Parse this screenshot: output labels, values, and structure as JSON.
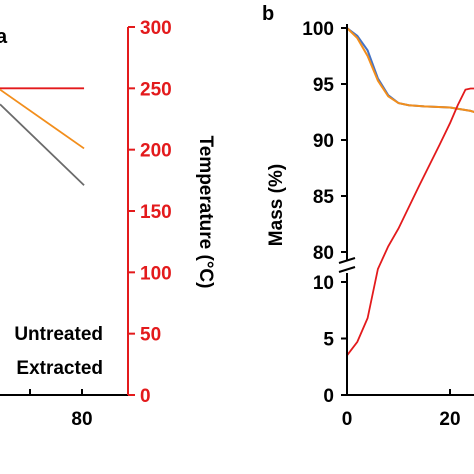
{
  "panel_a": {
    "letter": "a",
    "legend": [
      "Untreated",
      "Extracted"
    ]
  },
  "panel_b": {
    "letter": "b"
  },
  "colors": {
    "untreated": "#6b6b6b",
    "extracted": "#f28e1c",
    "temperature": "#e31a1c",
    "blue_trace": "#4472c4",
    "axis": "#000000"
  },
  "chart_data": [
    {
      "type": "line",
      "panel": "a",
      "title": "",
      "xlabel": "",
      "ylabel_right": "Temperature (°C)",
      "xlim": [
        0,
        85
      ],
      "ylim_right": [
        0,
        300
      ],
      "x_ticks": [
        80
      ],
      "y_right_ticks": [
        0,
        50,
        100,
        150,
        200,
        250,
        300
      ],
      "temperature_series": {
        "name": "",
        "x": [
          0,
          82
        ],
        "y": [
          250,
          250
        ]
      },
      "series": [
        {
          "name": "Untreated",
          "x": [
            0,
            82
          ],
          "y": [
            0.79,
            0.57
          ]
        },
        {
          "name": "Extracted",
          "x": [
            0,
            82
          ],
          "y": [
            0.83,
            0.67
          ]
        }
      ]
    },
    {
      "type": "line",
      "panel": "b",
      "title": "",
      "xlabel": "",
      "ylabel": "Mass (%)",
      "xlim": [
        0,
        30
      ],
      "x_ticks": [
        0,
        20
      ],
      "y_ticks_upper": [
        80,
        85,
        90,
        95,
        100
      ],
      "y_ticks_lower": [
        0,
        5,
        10
      ],
      "y_break": [
        10,
        79
      ],
      "series": [
        {
          "name": "Untreated",
          "x": [
            0,
            2,
            4,
            6,
            8,
            10,
            12,
            15,
            20,
            24,
            28
          ],
          "y": [
            100,
            99.3,
            98,
            95.5,
            94,
            93.3,
            93.1,
            93,
            92.9,
            92.6,
            92.0
          ]
        },
        {
          "name": "Extracted",
          "x": [
            0,
            2,
            4,
            6,
            8,
            10,
            12,
            15,
            20,
            24,
            28
          ],
          "y": [
            100,
            99.1,
            97.5,
            95.3,
            93.9,
            93.3,
            93.1,
            93,
            92.9,
            92.6,
            92.0
          ]
        },
        {
          "name": "Temperature",
          "x": [
            0,
            2,
            4,
            6,
            8,
            10,
            14,
            18,
            20,
            21.5,
            23,
            24,
            26,
            28
          ],
          "y": [
            3.5,
            4.7,
            6.8,
            10.5,
            80.5,
            82.1,
            85.9,
            89.6,
            91.5,
            93.1,
            94.5,
            94.6,
            94.6,
            94.6
          ]
        }
      ]
    }
  ]
}
